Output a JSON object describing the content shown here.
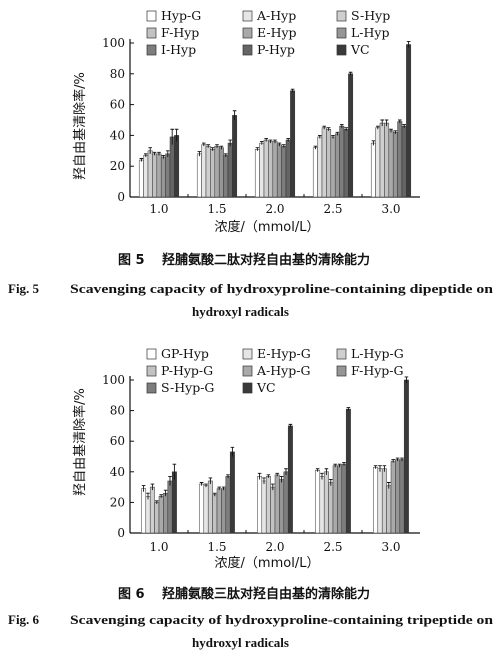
{
  "figure5": {
    "caption_zh": "羟脯氨酸二肽对羟自由基的清除能力",
    "caption_en_label": "Fig. 5",
    "caption_en_text": "Scavenging capacity of hydroxyproline-containing dipeptide on",
    "caption_en_text2": "hydroxyl radicals",
    "caption_zh_label": "图 5"
  },
  "figure6": {
    "caption_zh": "羟脯氨酸三肽对羟自由基的清除能力",
    "caption_en_label": "Fig. 6",
    "caption_en_text": "Scavenging capacity of hydroxyproline-containing tripeptide on",
    "caption_en_text2": "hydroxyl radicals",
    "caption_zh_label": "图 6"
  },
  "chart_data": [
    {
      "type": "bar",
      "ylabel": "羟自由基清除率/%",
      "xlabel": "浓度/（mmol/L）",
      "categories": [
        "1.0",
        "1.5",
        "2.0",
        "2.5",
        "3.0"
      ],
      "ylim": [
        0,
        100
      ],
      "yticks": [
        0,
        20,
        40,
        60,
        80,
        100
      ],
      "grid": false,
      "legend_position": "top",
      "error_bars": true,
      "series": [
        {
          "name": "Hyp-G",
          "color": "#ffffff",
          "values": [
            24,
            28,
            31,
            32,
            35
          ],
          "err": [
            1,
            1.5,
            1,
            1,
            1.5
          ]
        },
        {
          "name": "A-Hyp",
          "color": "#e6e6e6",
          "values": [
            27,
            34,
            35,
            39,
            45
          ],
          "err": [
            1,
            1,
            1,
            1,
            1
          ]
        },
        {
          "name": "S-Hyp",
          "color": "#cfcfcf",
          "values": [
            30,
            33,
            37,
            45,
            48
          ],
          "err": [
            2,
            1,
            1,
            1,
            2
          ]
        },
        {
          "name": "F-Hyp",
          "color": "#c2c2c2",
          "values": [
            28,
            31,
            36,
            44,
            48
          ],
          "err": [
            1,
            1,
            1,
            1,
            2
          ]
        },
        {
          "name": "E-Hyp",
          "color": "#a9a9a9",
          "values": [
            28,
            33,
            36,
            39,
            43
          ],
          "err": [
            1,
            1,
            1,
            1,
            1
          ]
        },
        {
          "name": "L-Hyp",
          "color": "#969696",
          "values": [
            26,
            32,
            34,
            41,
            42
          ],
          "err": [
            1,
            1,
            1,
            1,
            1
          ]
        },
        {
          "name": "I-Hyp",
          "color": "#7d7d7d",
          "values": [
            28,
            27,
            33,
            46,
            49
          ],
          "err": [
            2,
            1,
            1,
            1,
            1
          ]
        },
        {
          "name": "P-Hyp",
          "color": "#656565",
          "values": [
            39,
            35,
            37,
            44,
            46
          ],
          "err": [
            5,
            2,
            1,
            1,
            1
          ]
        },
        {
          "name": "VC",
          "color": "#3a3a3a",
          "values": [
            40,
            53,
            69,
            80,
            99
          ],
          "err": [
            4,
            3,
            1,
            1,
            2
          ]
        }
      ]
    },
    {
      "type": "bar",
      "ylabel": "羟自由基清除率/%",
      "xlabel": "浓度/（mmol/L）",
      "categories": [
        "1.0",
        "1.5",
        "2.0",
        "2.5",
        "3.0"
      ],
      "ylim": [
        0,
        100
      ],
      "yticks": [
        0,
        20,
        40,
        60,
        80,
        100
      ],
      "grid": false,
      "legend_position": "top",
      "error_bars": true,
      "series": [
        {
          "name": "GP-Hyp",
          "color": "#ffffff",
          "values": [
            29,
            32,
            37,
            41,
            43
          ],
          "err": [
            2,
            1,
            2,
            1,
            1
          ]
        },
        {
          "name": "E-Hyp-G",
          "color": "#e6e6e6",
          "values": [
            24,
            31,
            34,
            37,
            42
          ],
          "err": [
            2,
            1,
            2,
            2,
            2
          ]
        },
        {
          "name": "L-Hyp-G",
          "color": "#cfcfcf",
          "values": [
            30,
            34,
            37,
            40,
            42
          ],
          "err": [
            2,
            2,
            1,
            2,
            2
          ]
        },
        {
          "name": "P-Hyp-G",
          "color": "#c2c2c2",
          "values": [
            20,
            25,
            30,
            33,
            31
          ],
          "err": [
            1,
            1,
            2,
            2,
            2
          ]
        },
        {
          "name": "A-Hyp-G",
          "color": "#a9a9a9",
          "values": [
            24,
            29,
            38,
            44,
            47
          ],
          "err": [
            1,
            1,
            1,
            1,
            1
          ]
        },
        {
          "name": "F-Hyp-G",
          "color": "#969696",
          "values": [
            26,
            29,
            35,
            44,
            48
          ],
          "err": [
            2,
            1,
            2,
            1,
            1
          ]
        },
        {
          "name": "S-Hyp-G",
          "color": "#7d7d7d",
          "values": [
            34,
            37,
            40,
            45,
            48
          ],
          "err": [
            3,
            1,
            2,
            1,
            1
          ]
        },
        {
          "name": "VC",
          "color": "#3a3a3a",
          "values": [
            40,
            53,
            70,
            81,
            100
          ],
          "err": [
            5,
            3,
            1,
            1,
            2
          ]
        }
      ]
    }
  ]
}
